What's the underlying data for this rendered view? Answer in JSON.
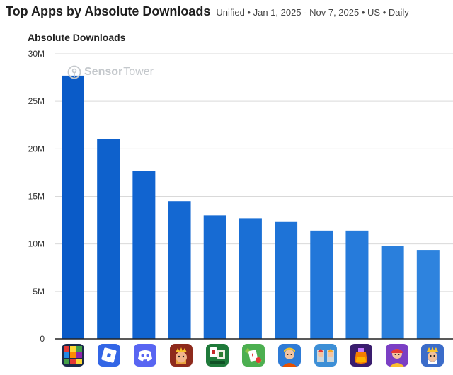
{
  "header": {
    "title": "Top Apps by Absolute Downloads",
    "meta_unified": "Unified",
    "meta_dates": "Jan 1, 2025 - Nov 7, 2025",
    "meta_region": "US",
    "meta_granularity": "Daily",
    "separator": "•"
  },
  "watermark": {
    "part1": "Sensor",
    "part2": "Tower"
  },
  "chart_data": {
    "type": "bar",
    "title": "Top Apps by Absolute Downloads",
    "ylabel": "Absolute Downloads",
    "ylim": [
      0,
      30
    ],
    "yticks": [
      0,
      5,
      10,
      15,
      20,
      25,
      30
    ],
    "ytick_labels": [
      "0",
      "5M",
      "10M",
      "15M",
      "20M",
      "25M",
      "30M"
    ],
    "grid": true,
    "categories": [
      "block-puzzle-icon",
      "roblox-icon",
      "discord-icon",
      "royal-match-icon",
      "mahjong-icon",
      "solitaire-icon",
      "fortnite-icon",
      "clash-royale-icon",
      "potion-puzzle-icon",
      "subway-surfers-icon",
      "kingdom-rush-icon"
    ],
    "values": [
      27.7,
      21.0,
      17.7,
      14.5,
      13.0,
      12.7,
      12.3,
      11.4,
      11.4,
      9.8,
      9.3
    ],
    "bar_colors": [
      "#0a5bc8",
      "#0e61cc",
      "#1164d0",
      "#1468d2",
      "#176bd3",
      "#1a6fd5",
      "#1e73d7",
      "#2277d9",
      "#267bdb",
      "#2a7fdc",
      "#2e83de"
    ]
  }
}
